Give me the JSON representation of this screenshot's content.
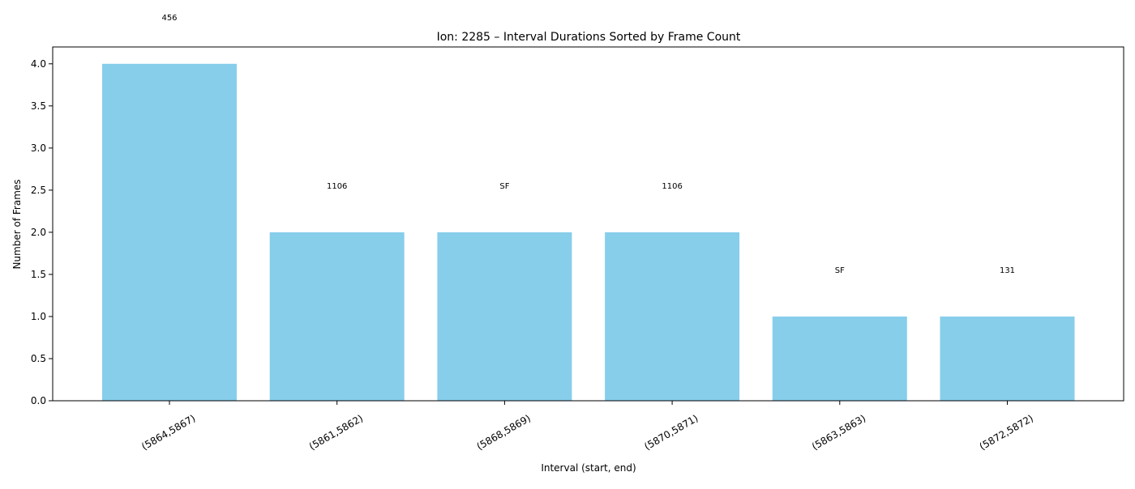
{
  "colors": {
    "bar": "#87CEEB",
    "axis": "#000000",
    "background": "#ffffff"
  },
  "chart_data": {
    "type": "bar",
    "title": "Ion: 2285 – Interval Durations Sorted by Frame Count",
    "xlabel": "Interval (start, end)",
    "ylabel": "Number of Frames",
    "categories": [
      "(5864,5867)",
      "(5861,5862)",
      "(5868,5869)",
      "(5870,5871)",
      "(5863,5863)",
      "(5872,5872)"
    ],
    "values": [
      4,
      2,
      2,
      2,
      1,
      1
    ],
    "annotations": [
      "456",
      "1106",
      "SF",
      "1106",
      "SF",
      "131"
    ],
    "ylim": [
      0,
      4.2
    ],
    "yticks": [
      "0.0",
      "0.5",
      "1.0",
      "1.5",
      "2.0",
      "2.5",
      "3.0",
      "3.5",
      "4.0"
    ],
    "grid": false
  }
}
